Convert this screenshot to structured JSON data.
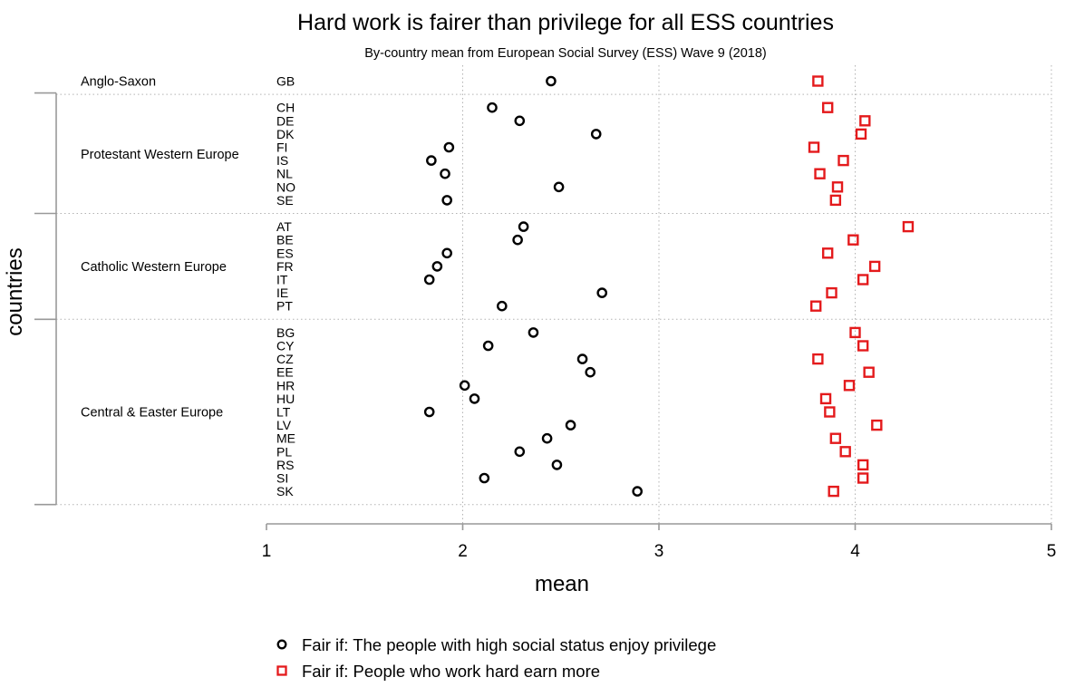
{
  "chart_data": {
    "type": "scatter",
    "title": "Hard work is fairer than privilege for all ESS countries",
    "subtitle": "By-country mean from European Social Survey (ESS) Wave 9 (2018)",
    "xlabel": "mean",
    "ylabel": "countries",
    "xlim": [
      1,
      5
    ],
    "xticks": [
      "1",
      "2",
      "3",
      "4",
      "5"
    ],
    "grid": true,
    "legend_position": "bottom",
    "groups": [
      {
        "name": "Anglo-Saxon",
        "countries": [
          "GB"
        ]
      },
      {
        "name": "Protestant Western Europe",
        "countries": [
          "CH",
          "DE",
          "DK",
          "FI",
          "IS",
          "NL",
          "NO",
          "SE"
        ]
      },
      {
        "name": "Catholic Western Europe",
        "countries": [
          "AT",
          "BE",
          "ES",
          "FR",
          "IT",
          "IE",
          "PT"
        ]
      },
      {
        "name": "Central & Easter Europe",
        "countries": [
          "BG",
          "CY",
          "CZ",
          "EE",
          "HR",
          "HU",
          "LT",
          "LV",
          "ME",
          "PL",
          "RS",
          "SI",
          "SK"
        ]
      }
    ],
    "series": [
      {
        "name": "Fair if: The people with high social status enjoy privilege",
        "marker": "circle",
        "color": "#000000",
        "values": {
          "GB": 2.45,
          "CH": 2.15,
          "DE": 2.29,
          "DK": 2.68,
          "FI": 1.93,
          "IS": 1.84,
          "NL": 1.91,
          "NO": 2.49,
          "SE": 1.92,
          "AT": 2.31,
          "BE": 2.28,
          "ES": 1.92,
          "FR": 1.87,
          "IT": 1.83,
          "IE": 2.71,
          "PT": 2.2,
          "BG": 2.36,
          "CY": 2.13,
          "CZ": 2.61,
          "EE": 2.65,
          "HR": 2.01,
          "HU": 2.06,
          "LT": 1.83,
          "LV": 2.55,
          "ME": 2.43,
          "PL": 2.29,
          "RS": 2.48,
          "SI": 2.11,
          "SK": 2.89
        }
      },
      {
        "name": "Fair if: People who work hard earn more",
        "marker": "square",
        "color": "#e41a1c",
        "values": {
          "GB": 3.81,
          "CH": 3.86,
          "DE": 4.05,
          "DK": 4.03,
          "FI": 3.79,
          "IS": 3.94,
          "NL": 3.82,
          "NO": 3.91,
          "SE": 3.9,
          "AT": 4.27,
          "BE": 3.99,
          "ES": 3.86,
          "FR": 4.1,
          "IT": 4.04,
          "IE": 3.88,
          "PT": 3.8,
          "BG": 4.0,
          "CY": 4.04,
          "CZ": 3.81,
          "EE": 4.07,
          "HR": 3.97,
          "HU": 3.85,
          "LT": 3.87,
          "LV": 4.11,
          "ME": 3.9,
          "PL": 3.95,
          "RS": 4.04,
          "SI": 4.04,
          "SK": 3.89
        }
      }
    ]
  }
}
